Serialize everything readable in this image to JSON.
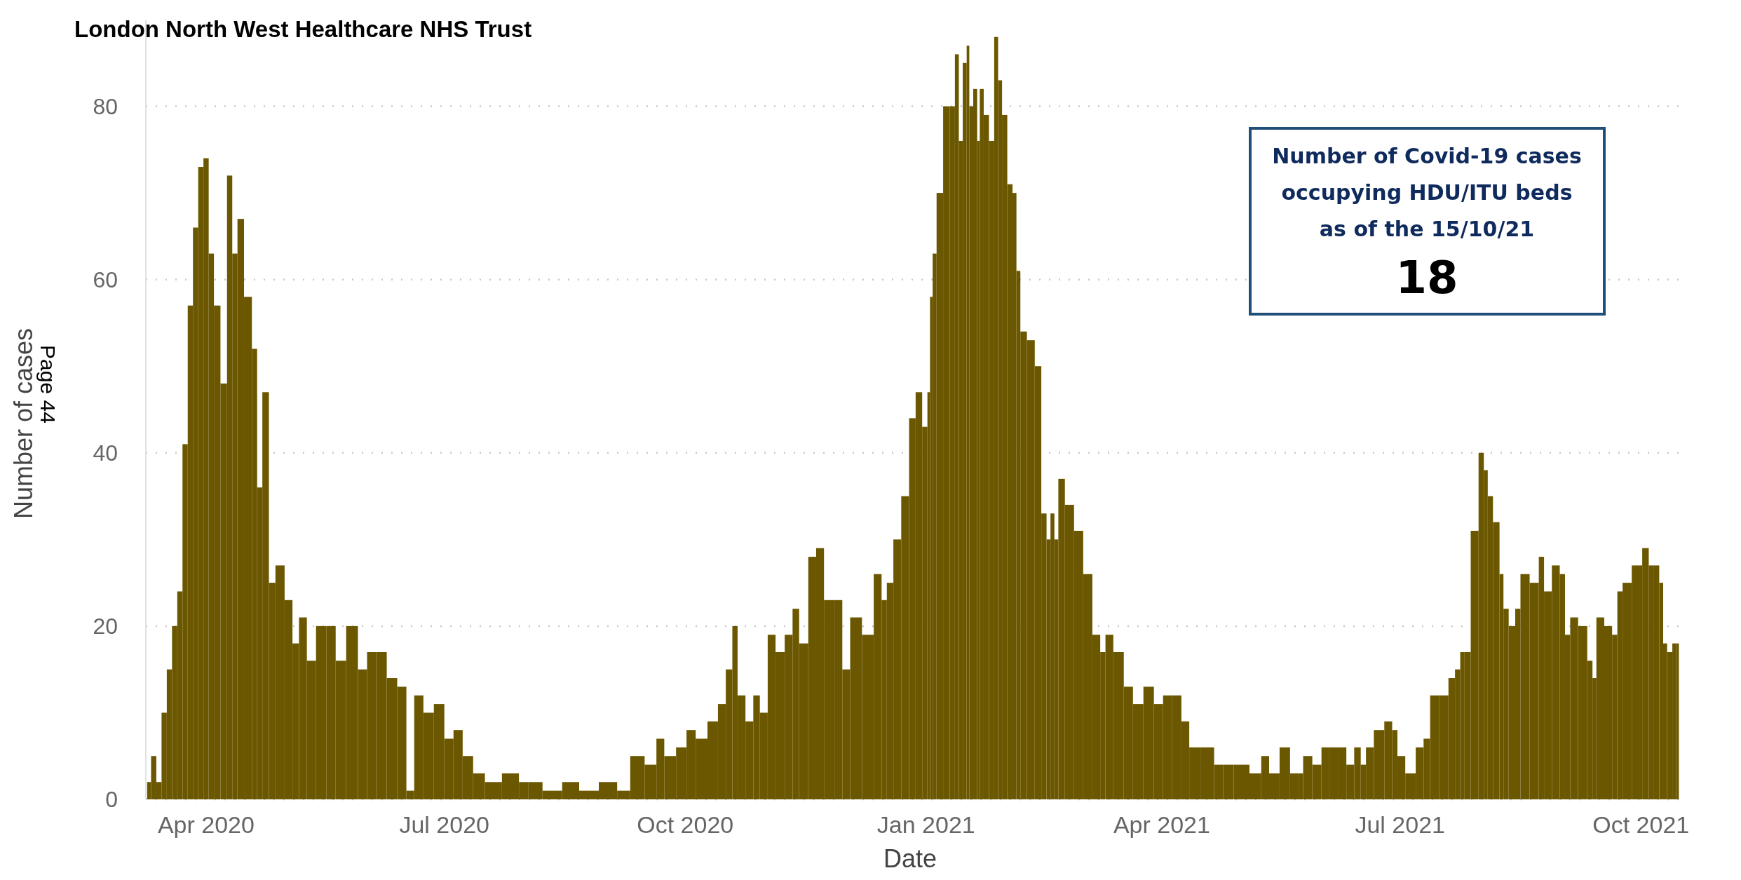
{
  "chart_data": {
    "type": "bar",
    "title": "London North West Healthcare NHS Trust",
    "xlabel": "Date",
    "ylabel": "Number of cases",
    "annotations": [
      "Number of Covid-19 cases occupying HDU/ITU beds as of the 15/10/21",
      "18",
      "Page 44"
    ],
    "color": "#6b5700",
    "x": [
      "2020-03-10",
      "2020-03-12",
      "2020-03-14",
      "2020-03-16",
      "2020-03-18",
      "2020-03-20",
      "2020-03-22",
      "2020-03-24",
      "2020-03-26",
      "2020-03-28",
      "2020-03-30",
      "2020-04-01",
      "2020-04-03",
      "2020-04-05",
      "2020-04-08",
      "2020-04-10",
      "2020-04-12",
      "2020-04-14",
      "2020-04-17",
      "2020-04-20",
      "2020-04-21",
      "2020-04-24",
      "2020-04-26",
      "2020-04-29",
      "2020-05-03",
      "2020-05-05",
      "2020-05-08",
      "2020-05-11",
      "2020-05-15",
      "2020-05-19",
      "2020-05-22",
      "2020-05-27",
      "2020-05-31",
      "2020-06-03",
      "2020-06-07",
      "2020-06-11",
      "2020-06-15",
      "2020-06-18",
      "2020-06-21",
      "2020-06-25",
      "2020-06-29",
      "2020-07-03",
      "2020-07-06",
      "2020-07-10",
      "2020-07-14",
      "2020-07-19",
      "2020-07-27",
      "2020-08-01",
      "2020-08-03",
      "2020-08-12",
      "2020-08-18",
      "2020-08-25",
      "2020-09-02",
      "2020-09-08",
      "2020-09-12",
      "2020-09-19",
      "2020-09-21",
      "2020-09-25",
      "2020-09-30",
      "2020-10-03",
      "2020-10-07",
      "2020-10-12",
      "2020-10-15",
      "2020-10-18",
      "2020-10-20",
      "2020-10-22",
      "2020-10-26",
      "2020-10-28",
      "2020-10-31",
      "2020-11-03",
      "2020-11-06",
      "2020-11-10",
      "2020-11-12",
      "2020-11-15",
      "2020-11-19",
      "2020-11-21",
      "2020-11-25",
      "2020-11-29",
      "2020-12-01",
      "2020-12-05",
      "2020-12-10",
      "2020-12-14",
      "2020-12-16",
      "2020-12-18",
      "2020-12-21",
      "2020-12-24",
      "2020-12-27",
      "2020-12-29",
      "2021-01-01",
      "2021-01-02",
      "2021-01-03",
      "2021-01-04",
      "2021-01-06",
      "2021-01-09",
      "2021-01-11",
      "2021-01-13",
      "2021-01-14",
      "2021-01-16",
      "2021-01-17",
      "2021-01-18",
      "2021-01-20",
      "2021-01-21",
      "2021-01-22",
      "2021-01-24",
      "2021-01-26",
      "2021-01-28",
      "2021-01-29",
      "2021-01-31",
      "2021-02-02",
      "2021-02-04",
      "2021-02-05",
      "2021-02-07",
      "2021-02-10",
      "2021-02-13",
      "2021-02-15",
      "2021-02-17",
      "2021-02-18",
      "2021-02-20",
      "2021-02-21",
      "2021-02-25",
      "2021-02-28",
      "2021-03-04",
      "2021-03-07",
      "2021-03-10",
      "2021-03-11",
      "2021-03-16",
      "2021-03-19",
      "2021-03-23",
      "2021-03-27",
      "2021-03-31",
      "2021-04-03",
      "2021-04-07",
      "2021-04-10",
      "2021-04-13",
      "2021-04-19",
      "2021-04-23",
      "2021-04-26",
      "2021-05-01",
      "2021-05-08",
      "2021-05-10",
      "2021-05-14",
      "2021-05-18",
      "2021-05-22",
      "2021-05-24",
      "2021-05-26",
      "2021-05-31",
      "2021-06-02",
      "2021-06-06",
      "2021-06-09",
      "2021-06-12",
      "2021-06-15",
      "2021-06-17",
      "2021-06-19",
      "2021-06-23",
      "2021-06-27",
      "2021-06-29",
      "2021-07-01",
      "2021-07-05",
      "2021-07-09",
      "2021-07-11",
      "2021-07-14",
      "2021-07-18",
      "2021-07-21",
      "2021-07-23",
      "2021-07-25",
      "2021-07-26",
      "2021-07-30",
      "2021-08-01",
      "2021-08-03",
      "2021-08-04",
      "2021-08-07",
      "2021-08-09",
      "2021-08-10",
      "2021-08-13",
      "2021-08-15",
      "2021-08-17",
      "2021-08-22",
      "2021-08-24",
      "2021-08-26",
      "2021-08-30",
      "2021-09-01",
      "2021-09-03",
      "2021-09-05",
      "2021-09-09",
      "2021-09-12",
      "2021-09-13",
      "2021-09-15",
      "2021-09-19",
      "2021-09-21",
      "2021-09-23",
      "2021-09-25",
      "2021-09-30",
      "2021-10-03",
      "2021-10-05",
      "2021-10-07",
      "2021-10-09",
      "2021-10-10",
      "2021-10-12",
      "2021-10-14",
      "2021-10-15"
    ],
    "values": [
      2,
      5,
      2,
      10,
      15,
      20,
      24,
      41,
      57,
      66,
      73,
      74,
      63,
      57,
      48,
      72,
      63,
      67,
      58,
      52,
      36,
      47,
      25,
      27,
      23,
      18,
      21,
      16,
      20,
      20,
      16,
      20,
      15,
      17,
      17,
      14,
      13,
      1,
      12,
      10,
      11,
      7,
      8,
      5,
      3,
      2,
      3,
      2,
      2,
      1,
      2,
      1,
      2,
      1,
      5,
      4,
      7,
      5,
      6,
      8,
      7,
      9,
      11,
      15,
      20,
      12,
      9,
      12,
      10,
      19,
      17,
      19,
      22,
      18,
      28,
      29,
      23,
      23,
      15,
      21,
      19,
      26,
      23,
      25,
      30,
      35,
      44,
      47,
      43,
      47,
      58,
      63,
      70,
      80,
      80,
      86,
      76,
      85,
      87,
      80,
      82,
      76,
      82,
      79,
      76,
      88,
      83,
      79,
      71,
      70,
      61,
      54,
      53,
      50,
      33,
      30,
      33,
      30,
      37,
      34,
      31,
      26,
      19,
      17,
      19,
      17,
      13,
      11,
      13,
      11,
      12,
      12,
      9,
      6,
      6,
      4,
      4,
      4,
      3,
      5,
      3,
      6,
      3,
      3,
      5,
      4,
      6,
      6,
      6,
      4,
      6,
      4,
      6,
      8,
      9,
      8,
      5,
      3,
      6,
      7,
      12,
      12,
      14,
      15,
      17,
      17,
      31,
      40,
      38,
      35,
      32,
      26,
      22,
      20,
      22,
      26,
      25,
      28,
      24,
      27,
      26,
      19,
      21,
      20,
      16,
      14,
      21,
      20,
      19,
      24,
      25,
      27,
      29,
      27,
      27,
      25,
      18,
      17,
      18,
      18
    ],
    "xlim": [
      "2020-03-09",
      "2021-10-17"
    ],
    "xticks": [
      {
        "value": "2020-04-01",
        "label": "Apr 2020"
      },
      {
        "value": "2020-07-01",
        "label": "Jul 2020"
      },
      {
        "value": "2020-10-01",
        "label": "Oct 2020"
      },
      {
        "value": "2021-01-01",
        "label": "Jan 2021"
      },
      {
        "value": "2021-04-01",
        "label": "Apr 2021"
      },
      {
        "value": "2021-07-01",
        "label": "Jul 2021"
      },
      {
        "value": "2021-10-01",
        "label": "Oct 2021"
      }
    ],
    "ylim": [
      0,
      90
    ],
    "yticks": [
      0,
      20,
      40,
      60,
      80
    ],
    "grid": "y"
  }
}
